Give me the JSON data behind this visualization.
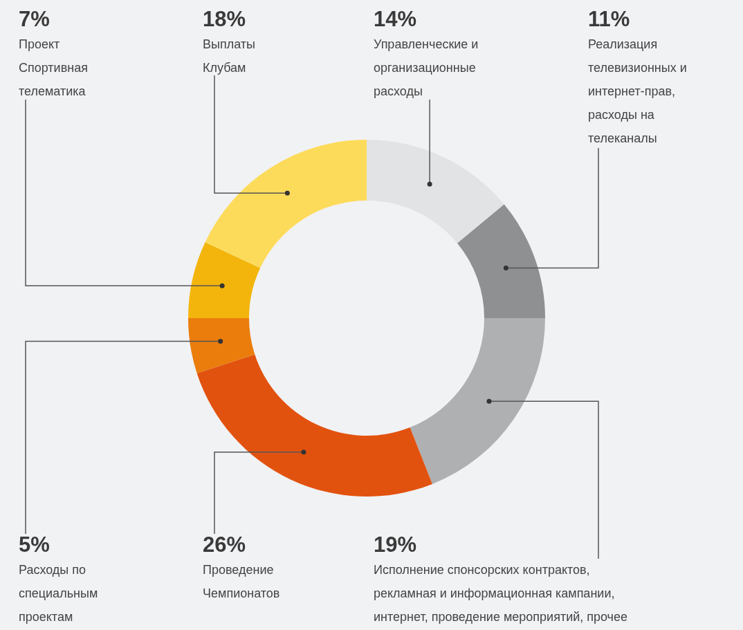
{
  "chart_data": {
    "type": "donut",
    "categories": [
      "Управленческие и организационные расходы",
      "Реализация телевизионных и интернет-прав, расходы на телеканалы",
      "Исполнение спонсорских контрактов, рекламная и информационная кампании, интернет, проведение мероприятий, прочее",
      "Проведение Чемпионатов",
      "Расходы по специальным проектам",
      "Проект Спортивная телематика",
      "Выплаты Клубам"
    ],
    "values": [
      14,
      11,
      19,
      26,
      5,
      7,
      18
    ],
    "value_labels": [
      "14%",
      "11%",
      "19%",
      "26%",
      "5%",
      "7%",
      "18%"
    ],
    "colors": [
      "#e2e3e5",
      "#8e9092",
      "#aeb0b2",
      "#e2520f",
      "#ea7d0c",
      "#f3b50c",
      "#fddb5a"
    ]
  }
}
